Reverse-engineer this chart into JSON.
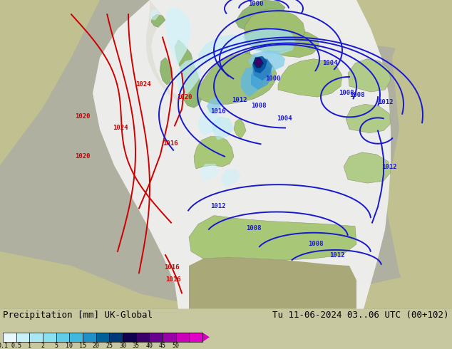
{
  "title_left": "Precipitation [mm] UK-Global",
  "title_right": "Tu 11-06-2024 03..06 UTC (00+102)",
  "colorbar_labels": [
    "0.1",
    "0.5",
    "1",
    "2",
    "5",
    "10",
    "15",
    "20",
    "25",
    "30",
    "35",
    "40",
    "45",
    "50"
  ],
  "cb_colors": [
    "#e8f8fc",
    "#c8f0f8",
    "#a8e8f4",
    "#88e0f0",
    "#60cce8",
    "#40b8e0",
    "#2090c8",
    "#006098",
    "#003878",
    "#100050",
    "#380068",
    "#680090",
    "#9800a8",
    "#c800b8",
    "#e000c8"
  ],
  "bg_color": "#c8c8a0",
  "domain_color": "#f0f0f0",
  "land_color_uk": "#90b870",
  "land_color_europe": "#a8c880",
  "sea_color": "#a0a890",
  "precip_light_cyan": "#c0f0f8",
  "precip_cyan": "#80d8f0",
  "precip_blue": "#4090c8",
  "precip_dkblue": "#103080",
  "precip_navy": "#081840",
  "precip_purple": "#400068",
  "red_line_color": "#cc0000",
  "blue_line_color": "#1818cc",
  "title_fontsize": 9,
  "label_fontsize": 7,
  "bar_bg": "#c8c8a0"
}
